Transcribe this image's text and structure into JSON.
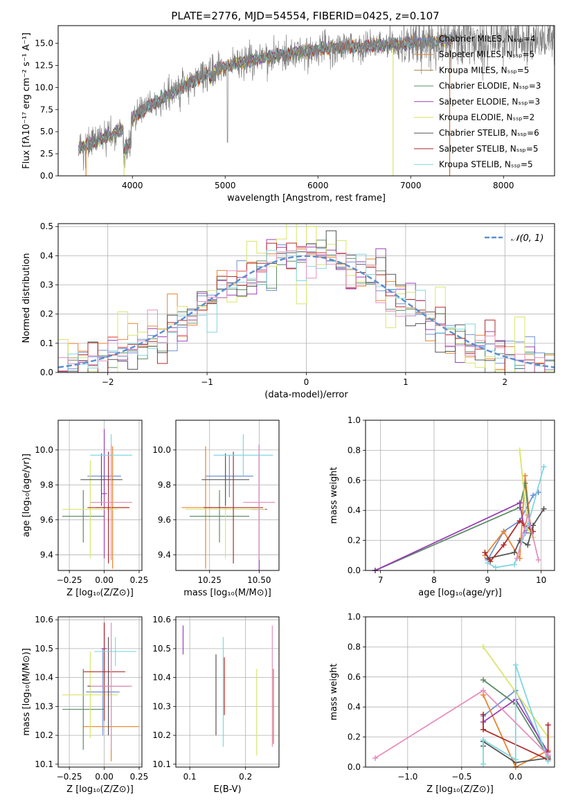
{
  "figure_title": "PLATE=2776, MJD=54554, FIBERID=0425, z=0.107",
  "colors": {
    "data_spectrum": "#808080",
    "fits": [
      "#6f8fd6",
      "#e9842c",
      "#a8873a",
      "#5c8b64",
      "#9a3fb5",
      "#d8e56a",
      "#555555",
      "#b02a2a",
      "#7fd6e0",
      "#e58fbe",
      "#d26c2a"
    ],
    "normal_curve": "#5b8fd0"
  },
  "chart_data": [
    {
      "id": "spectrum",
      "type": "line",
      "xlabel": "wavelength [Angstrom, rest frame]",
      "ylabel": "Flux [fλ10⁻¹⁷ erg cm⁻² s⁻¹ A⁻¹]",
      "xlim": [
        3200,
        8550
      ],
      "ylim": [
        0,
        17
      ],
      "xticks": [
        4000,
        5000,
        6000,
        7000,
        8000
      ],
      "yticks": [
        0.0,
        2.5,
        5.0,
        7.5,
        10.0,
        12.5,
        15.0
      ],
      "grid": false,
      "legend_position": "top-right",
      "continuum": {
        "x": [
          3420,
          3500,
          3600,
          3700,
          3800,
          3900,
          4000,
          4100,
          4200,
          4300,
          4400,
          4500,
          4600,
          4800,
          5000,
          5200,
          5400,
          5600,
          5800,
          6000,
          6200,
          6400,
          6600,
          6800,
          7000,
          7200,
          7400
        ],
        "y": [
          3.2,
          3.4,
          3.8,
          4.3,
          4.8,
          5.3,
          6.5,
          7.3,
          8.0,
          8.6,
          9.2,
          9.8,
          10.4,
          11.5,
          12.4,
          12.9,
          13.3,
          13.7,
          14.0,
          14.3,
          14.5,
          14.6,
          14.7,
          14.8,
          15.0,
          15.2,
          15.4
        ]
      },
      "data_range": [
        3420,
        8550
      ],
      "legend": [
        "Chabrier MILES, Nₛₛₚ=4",
        "Salpeter MILES, Nₛₛₚ=5",
        "Kroupa MILES, Nₛₛₚ=5",
        "Chabrier ELODIE, Nₛₛₚ=3",
        "Salpeter ELODIE, Nₛₛₚ=3",
        "Kroupa ELODIE, Nₛₛₚ=2",
        "Chabrier STELIB, Nₛₛₚ=6",
        "Salpeter STELIB, Nₛₛₚ=5",
        "Kroupa STELIB, Nₛₛₚ=5"
      ]
    },
    {
      "id": "residuals",
      "type": "step-histogram",
      "xlabel": "(data-model)/error",
      "ylabel": "Normed distribution",
      "xlim": [
        -2.5,
        2.5
      ],
      "ylim": [
        0,
        0.51
      ],
      "xticks": [
        -2,
        -1,
        0,
        1,
        2
      ],
      "yticks": [
        0.0,
        0.1,
        0.2,
        0.3,
        0.4,
        0.5
      ],
      "grid": true,
      "bin_width": 0.1,
      "legend": [
        "𝒩(0, 1)"
      ],
      "legend_position": "top-right"
    },
    {
      "id": "age_vs_Z",
      "type": "errorbar",
      "xlabel": "Z [log₁₀(Z/Z⊙)]",
      "ylabel": "age  [log₁₀(age/yr)]",
      "xlim": [
        -0.33,
        0.27
      ],
      "ylim": [
        9.31,
        10.17
      ],
      "xticks": [
        -0.25,
        0.0,
        0.25
      ],
      "yticks": [
        9.4,
        9.6,
        9.8,
        10.0
      ],
      "points": [
        {
          "x": 0.0,
          "xerr": 0.12,
          "y": 9.85,
          "yerr": 0.12,
          "c": 0
        },
        {
          "x": 0.06,
          "xerr": 0.12,
          "y": 9.67,
          "yerr": 0.35,
          "c": 1
        },
        {
          "x": -0.15,
          "xerr": 0.15,
          "y": 9.62,
          "yerr": 0.15,
          "c": 3
        },
        {
          "x": 0.0,
          "xerr": 0.02,
          "y": 9.75,
          "yerr": 0.37,
          "c": 4
        },
        {
          "x": -0.1,
          "xerr": 0.2,
          "y": 9.66,
          "yerr": 0.28,
          "c": 5
        },
        {
          "x": -0.02,
          "xerr": 0.15,
          "y": 9.83,
          "yerr": 0.15,
          "c": 6
        },
        {
          "x": 0.03,
          "xerr": 0.15,
          "y": 9.67,
          "yerr": 0.32,
          "c": 7
        },
        {
          "x": 0.05,
          "xerr": 0.15,
          "y": 9.97,
          "yerr": 0.12,
          "c": 8
        },
        {
          "x": 0.05,
          "xerr": 0.15,
          "y": 9.7,
          "yerr": 0.33,
          "c": 9
        }
      ]
    },
    {
      "id": "age_vs_mass",
      "type": "errorbar",
      "xlabel": "mass [log₁₀(M/M⊙)]",
      "ylabel": "",
      "xlim": [
        10.08,
        10.6
      ],
      "ylim": [
        9.31,
        10.17
      ],
      "xticks": [
        10.25,
        10.5
      ],
      "yticks": [
        9.4,
        9.6,
        9.8,
        10.0
      ],
      "points": [
        {
          "x": 10.35,
          "xerr": 0.12,
          "y": 9.85,
          "yerr": 0.12,
          "c": 0
        },
        {
          "x": 10.23,
          "xerr": 0.12,
          "y": 9.67,
          "yerr": 0.35,
          "c": 1
        },
        {
          "x": 10.3,
          "xerr": 0.15,
          "y": 9.62,
          "yerr": 0.15,
          "c": 3
        },
        {
          "x": 10.5,
          "xerr": 0.04,
          "y": 9.66,
          "yerr": 0.37,
          "c": 4
        },
        {
          "x": 10.33,
          "xerr": 0.2,
          "y": 9.66,
          "yerr": 0.28,
          "c": 5
        },
        {
          "x": 10.33,
          "xerr": 0.12,
          "y": 9.83,
          "yerr": 0.15,
          "c": 6
        },
        {
          "x": 10.37,
          "xerr": 0.15,
          "y": 9.67,
          "yerr": 0.32,
          "c": 7
        },
        {
          "x": 10.42,
          "xerr": 0.15,
          "y": 9.97,
          "yerr": 0.12,
          "c": 8
        },
        {
          "x": 10.5,
          "xerr": 0.08,
          "y": 9.7,
          "yerr": 0.33,
          "c": 9
        }
      ]
    },
    {
      "id": "weight_vs_age",
      "type": "line",
      "xlabel": "age  [log₁₀(age/yr)]",
      "ylabel": "mass weight",
      "xlim": [
        6.72,
        10.25
      ],
      "ylim": [
        0,
        1.0
      ],
      "xticks": [
        7,
        8,
        9,
        10
      ],
      "yticks": [
        0.0,
        0.2,
        0.4,
        0.6,
        0.8,
        1.0
      ],
      "grid": true,
      "series": [
        {
          "c": 0,
          "x": [
            9.0,
            9.3,
            9.6,
            9.85,
            9.95
          ],
          "y": [
            0.07,
            0.26,
            0.33,
            0.5,
            0.52
          ]
        },
        {
          "c": 1,
          "x": [
            8.95,
            9.3,
            9.6,
            9.7,
            9.8
          ],
          "y": [
            0.1,
            0.26,
            0.08,
            0.63,
            0.3
          ]
        },
        {
          "c": 3,
          "x": [
            6.9,
            9.6,
            9.7,
            9.8
          ],
          "y": [
            0.0,
            0.42,
            0.58,
            0.25
          ]
        },
        {
          "c": 4,
          "x": [
            6.9,
            9.6,
            9.7,
            9.8
          ],
          "y": [
            0.0,
            0.45,
            0.25,
            0.3
          ]
        },
        {
          "c": 5,
          "x": [
            9.6,
            9.75,
            9.85
          ],
          "y": [
            0.8,
            0.28,
            0.22
          ]
        },
        {
          "c": 6,
          "x": [
            9.0,
            9.5,
            9.6,
            9.75,
            9.85,
            10.05
          ],
          "y": [
            0.08,
            0.12,
            0.2,
            0.17,
            0.3,
            0.41
          ]
        },
        {
          "c": 7,
          "x": [
            8.95,
            9.05,
            9.3,
            9.6,
            9.7,
            9.85
          ],
          "y": [
            0.12,
            0.06,
            0.17,
            0.33,
            0.3,
            0.26
          ]
        },
        {
          "c": 8,
          "x": [
            9.0,
            9.15,
            9.5,
            9.75,
            10.05
          ],
          "y": [
            0.05,
            0.02,
            0.04,
            0.3,
            0.69
          ]
        },
        {
          "c": 9,
          "x": [
            9.55,
            9.75,
            9.95
          ],
          "y": [
            0.08,
            0.37,
            0.07
          ]
        }
      ]
    },
    {
      "id": "mass_vs_Z",
      "type": "errorbar",
      "xlabel": "Z [log₁₀(Z/Z⊙)]",
      "ylabel": "mass [log₁₀(M/M⊙)]",
      "xlim": [
        -0.33,
        0.27
      ],
      "ylim": [
        10.09,
        10.61
      ],
      "xticks": [
        -0.25,
        0.0,
        0.25
      ],
      "yticks": [
        10.1,
        10.2,
        10.3,
        10.4,
        10.5,
        10.6
      ],
      "points": [
        {
          "x": -0.01,
          "xerr": 0.12,
          "y": 10.35,
          "yerr": 0.15,
          "c": 0
        },
        {
          "x": 0.05,
          "xerr": 0.2,
          "y": 10.23,
          "yerr": 0.12,
          "c": 1
        },
        {
          "x": -0.15,
          "xerr": 0.15,
          "y": 10.29,
          "yerr": 0.14,
          "c": 3
        },
        {
          "x": 0.0,
          "xerr": 0.02,
          "y": 10.5,
          "yerr": 0.09,
          "c": 4
        },
        {
          "x": -0.1,
          "xerr": 0.2,
          "y": 10.34,
          "yerr": 0.15,
          "c": 5
        },
        {
          "x": 0.03,
          "xerr": 0.15,
          "y": 10.37,
          "yerr": 0.17,
          "c": 6
        },
        {
          "x": 0.0,
          "xerr": 0.15,
          "y": 10.42,
          "yerr": 0.17,
          "c": 7
        },
        {
          "x": 0.08,
          "xerr": 0.15,
          "y": 10.49,
          "yerr": 0.05,
          "c": 8
        },
        {
          "x": 0.05,
          "xerr": 0.15,
          "y": 10.37,
          "yerr": 0.22,
          "c": 9
        }
      ]
    },
    {
      "id": "mass_vs_ebv",
      "type": "errorbar",
      "xlabel": "E(B-V)",
      "ylabel": "",
      "xlim": [
        0.075,
        0.26
      ],
      "ylim": [
        10.09,
        10.61
      ],
      "xticks": [
        0.1,
        0.2
      ],
      "yticks": [
        10.1,
        10.2,
        10.3,
        10.4,
        10.5,
        10.6
      ],
      "points": [
        {
          "x": 0.16,
          "xerr": 0.0,
          "y": 10.35,
          "yerr": 0.19,
          "c": 8
        },
        {
          "x": 0.147,
          "xerr": 0.0,
          "y": 10.34,
          "yerr": 0.14,
          "c": 6
        },
        {
          "x": 0.162,
          "xerr": 0.0,
          "y": 10.37,
          "yerr": 0.1,
          "c": 7
        },
        {
          "x": 0.088,
          "xerr": 0.0,
          "y": 10.53,
          "yerr": 0.05,
          "c": 4
        },
        {
          "x": 0.22,
          "xerr": 0.0,
          "y": 10.28,
          "yerr": 0.15,
          "c": 5
        },
        {
          "x": 0.248,
          "xerr": 0.0,
          "y": 10.37,
          "yerr": 0.21,
          "c": 9
        },
        {
          "x": 0.25,
          "xerr": 0.0,
          "y": 10.3,
          "yerr": 0.13,
          "c": 10
        }
      ]
    },
    {
      "id": "weight_vs_Z",
      "type": "line",
      "xlabel": "Z [log₁₀(Z/Z⊙)]",
      "ylabel": "mass weight",
      "xlim": [
        -1.39,
        0.36
      ],
      "ylim": [
        0,
        1.0
      ],
      "xticks": [
        -1.0,
        -0.5,
        0.0
      ],
      "yticks": [
        0.0,
        0.2,
        0.4,
        0.6,
        0.8,
        1.0
      ],
      "grid": true,
      "series": [
        {
          "c": 0,
          "x": [
            -0.3,
            0.0,
            0.3
          ],
          "y": [
            0.34,
            0.51,
            0.07
          ]
        },
        {
          "c": 1,
          "x": [
            -0.3,
            0.0,
            0.3
          ],
          "y": [
            0.48,
            0.0,
            0.11
          ]
        },
        {
          "c": 3,
          "x": [
            -0.3,
            0.0,
            0.3
          ],
          "y": [
            0.58,
            0.42,
            0.07
          ]
        },
        {
          "c": 4,
          "x": [
            -0.3,
            0.0,
            0.3
          ],
          "y": [
            0.3,
            0.45,
            0.1
          ]
        },
        {
          "c": 5,
          "x": [
            -0.3,
            0.3
          ],
          "y": [
            0.8,
            0.2
          ]
        },
        {
          "c": 6,
          "x": [
            -0.3,
            -0.3,
            0.0,
            0.3
          ],
          "y": [
            0.14,
            0.17,
            0.03,
            0.06
          ]
        },
        {
          "c": 7,
          "x": [
            -0.3,
            -0.3,
            0.3,
            0.3
          ],
          "y": [
            0.35,
            0.25,
            0.05,
            0.28
          ]
        },
        {
          "c": 8,
          "x": [
            -0.3,
            -0.3,
            0.0,
            0.0,
            0.3
          ],
          "y": [
            0.02,
            0.18,
            0.05,
            0.68,
            0.04
          ]
        },
        {
          "c": 9,
          "x": [
            -1.3,
            -0.3,
            0.3
          ],
          "y": [
            0.06,
            0.51,
            0.08
          ]
        }
      ]
    }
  ]
}
